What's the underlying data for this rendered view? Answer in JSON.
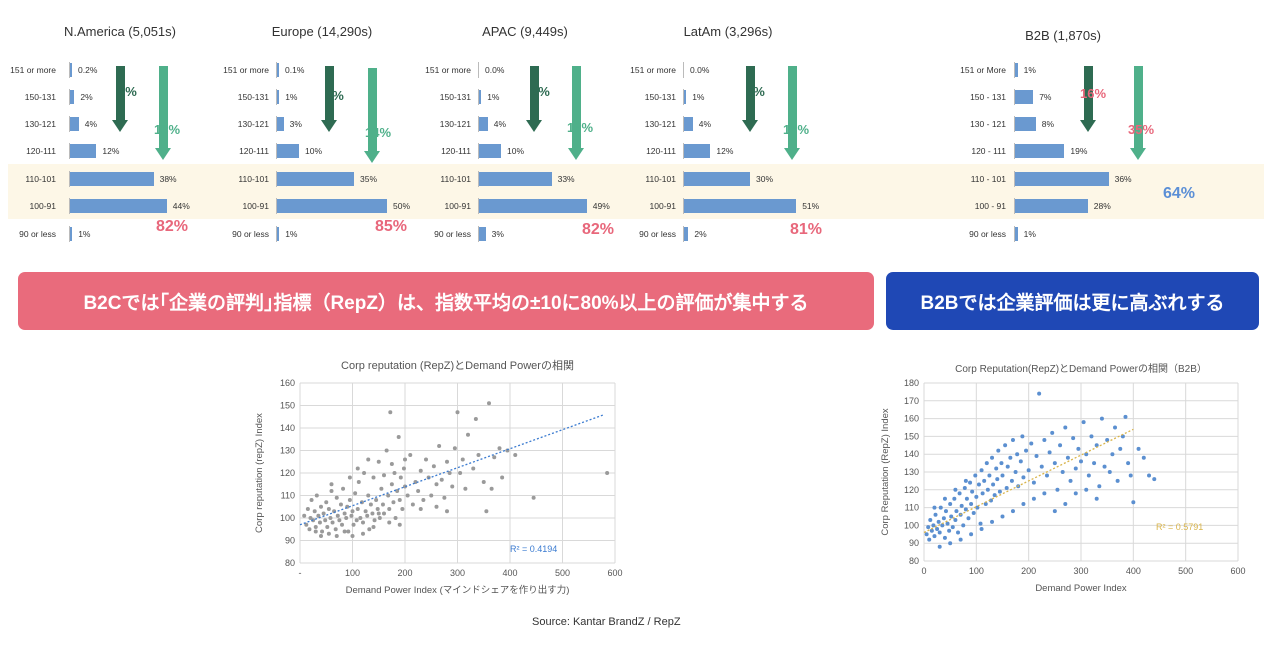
{
  "colors": {
    "bar": "#6a99d0",
    "arrow_dark": "#2e6b52",
    "arrow_light": "#4fb08a",
    "accent_pink": "#e8677b",
    "b2b_pct": "#5b8fd6",
    "banner_b2c": "#e96b7c",
    "banner_b2b": "#1f48b5",
    "scatter_grey": "#9a9a9a",
    "scatter_blue": "#5b8fd0",
    "trend_blue": "#3b7bd0",
    "trend_gold": "#d9b44a"
  },
  "regions": [
    {
      "title": "N.America (5,051s)",
      "categories": [
        "151 or more",
        "150-131",
        "130-121",
        "120-111",
        "110-101",
        "100-91",
        "90 or less"
      ],
      "values": [
        0.2,
        2,
        4,
        12,
        38,
        44,
        1
      ],
      "labels": [
        "0.2%",
        "2%",
        "4%",
        "12%",
        "38%",
        "44%",
        "1%"
      ],
      "dark_arrow_label": "6%",
      "light_arrow_label": "18%",
      "total_label": "82%"
    },
    {
      "title": "Europe (14,290s)",
      "categories": [
        "151 or more",
        "150-131",
        "130-121",
        "120-111",
        "110-101",
        "100-91",
        "90 or less"
      ],
      "values": [
        0.1,
        1,
        3,
        10,
        35,
        50,
        1
      ],
      "labels": [
        "0.1%",
        "1%",
        "3%",
        "10%",
        "35%",
        "50%",
        "1%"
      ],
      "dark_arrow_label": "4%",
      "light_arrow_label": "14%",
      "total_label": "85%"
    },
    {
      "title": "APAC (9,449s)",
      "categories": [
        "151 or more",
        "150-131",
        "130-121",
        "120-111",
        "110-101",
        "100-91",
        "90 or less"
      ],
      "values": [
        0,
        1,
        4,
        10,
        33,
        49,
        3
      ],
      "labels": [
        "0.0%",
        "1%",
        "4%",
        "10%",
        "33%",
        "49%",
        "3%"
      ],
      "dark_arrow_label": "6%",
      "light_arrow_label": "16%",
      "total_label": "82%"
    },
    {
      "title": "LatAm (3,296s)",
      "categories": [
        "151 or more",
        "150-131",
        "130-121",
        "120-111",
        "110-101",
        "100-91",
        "90 or less"
      ],
      "values": [
        0,
        1,
        4,
        12,
        30,
        51,
        2
      ],
      "labels": [
        "0.0%",
        "1%",
        "4%",
        "12%",
        "30%",
        "51%",
        "2%"
      ],
      "dark_arrow_label": "5%",
      "light_arrow_label": "17%",
      "total_label": "81%"
    },
    {
      "title": "B2B (1,870s)",
      "categories": [
        "151 or More",
        "150 - 131",
        "130 - 121",
        "120 - 111",
        "110 - 101",
        "100 - 91",
        "90 or less"
      ],
      "values": [
        1,
        7,
        8,
        19,
        36,
        28,
        1
      ],
      "labels": [
        "1%",
        "7%",
        "8%",
        "19%",
        "36%",
        "28%",
        "1%"
      ],
      "dark_arrow_label": "16%",
      "light_arrow_label": "35%",
      "total_label": "64%"
    }
  ],
  "banners": {
    "b2c": "B2Cでは｢企業の評判｣指標（RepZ）は、指数平均の±10に80%以上の評価が集中する",
    "b2b": "B2Bでは企業評価は更に高ぶれする"
  },
  "chart_data": [
    {
      "type": "scatter",
      "title": "Corp reputation (RepZ)とDemand Powerの相関",
      "xlabel": "Demand Power Index (マインドシェアを作り出す力)",
      "ylabel": "Corp reputation (repZ) Index",
      "xlim": [
        0,
        600
      ],
      "ylim": [
        80,
        160
      ],
      "xticks": [
        "-",
        "100",
        "200",
        "300",
        "400",
        "500",
        "600"
      ],
      "yticks": [
        "80",
        "90",
        "100",
        "110",
        "120",
        "130",
        "140",
        "150",
        "160"
      ],
      "grid": true,
      "r2_label": "R² = 0.4194",
      "trendline": {
        "x": [
          0,
          580
        ],
        "y": [
          97,
          146
        ]
      },
      "points": [
        [
          8,
          101
        ],
        [
          12,
          97
        ],
        [
          15,
          104
        ],
        [
          18,
          95
        ],
        [
          20,
          100
        ],
        [
          22,
          108
        ],
        [
          25,
          99
        ],
        [
          28,
          103
        ],
        [
          30,
          96
        ],
        [
          32,
          110
        ],
        [
          35,
          101
        ],
        [
          38,
          98
        ],
        [
          40,
          105
        ],
        [
          42,
          94
        ],
        [
          45,
          102
        ],
        [
          48,
          99
        ],
        [
          50,
          107
        ],
        [
          52,
          96
        ],
        [
          55,
          104
        ],
        [
          58,
          100
        ],
        [
          60,
          112
        ],
        [
          62,
          98
        ],
        [
          65,
          103
        ],
        [
          68,
          95
        ],
        [
          70,
          109
        ],
        [
          72,
          101
        ],
        [
          75,
          99
        ],
        [
          78,
          106
        ],
        [
          80,
          97
        ],
        [
          82,
          113
        ],
        [
          85,
          102
        ],
        [
          88,
          100
        ],
        [
          90,
          105
        ],
        [
          92,
          94
        ],
        [
          95,
          108
        ],
        [
          98,
          101
        ],
        [
          100,
          103
        ],
        [
          102,
          97
        ],
        [
          105,
          111
        ],
        [
          108,
          99
        ],
        [
          110,
          104
        ],
        [
          112,
          116
        ],
        [
          115,
          100
        ],
        [
          118,
          107
        ],
        [
          120,
          98
        ],
        [
          122,
          120
        ],
        [
          125,
          103
        ],
        [
          128,
          101
        ],
        [
          130,
          110
        ],
        [
          132,
          95
        ],
        [
          135,
          106
        ],
        [
          138,
          102
        ],
        [
          140,
          118
        ],
        [
          142,
          99
        ],
        [
          145,
          108
        ],
        [
          148,
          104
        ],
        [
          150,
          125
        ],
        [
          152,
          100
        ],
        [
          155,
          113
        ],
        [
          158,
          106
        ],
        [
          160,
          102
        ],
        [
          165,
          130
        ],
        [
          168,
          110
        ],
        [
          170,
          104
        ],
        [
          172,
          147
        ],
        [
          175,
          115
        ],
        [
          178,
          107
        ],
        [
          180,
          120
        ],
        [
          182,
          100
        ],
        [
          185,
          112
        ],
        [
          188,
          136
        ],
        [
          190,
          108
        ],
        [
          192,
          118
        ],
        [
          195,
          104
        ],
        [
          198,
          122
        ],
        [
          200,
          114
        ],
        [
          205,
          110
        ],
        [
          210,
          128
        ],
        [
          215,
          106
        ],
        [
          220,
          116
        ],
        [
          225,
          112
        ],
        [
          230,
          121
        ],
        [
          235,
          108
        ],
        [
          240,
          126
        ],
        [
          245,
          118
        ],
        [
          250,
          110
        ],
        [
          255,
          123
        ],
        [
          260,
          115
        ],
        [
          265,
          132
        ],
        [
          270,
          117
        ],
        [
          275,
          109
        ],
        [
          280,
          125
        ],
        [
          285,
          120
        ],
        [
          290,
          114
        ],
        [
          295,
          131
        ],
        [
          300,
          147
        ],
        [
          305,
          120
        ],
        [
          310,
          126
        ],
        [
          315,
          113
        ],
        [
          320,
          137
        ],
        [
          330,
          122
        ],
        [
          335,
          144
        ],
        [
          340,
          128
        ],
        [
          350,
          116
        ],
        [
          355,
          103
        ],
        [
          360,
          151
        ],
        [
          365,
          113
        ],
        [
          370,
          127
        ],
        [
          380,
          131
        ],
        [
          385,
          118
        ],
        [
          395,
          130
        ],
        [
          410,
          128
        ],
        [
          445,
          109
        ],
        [
          585,
          120
        ],
        [
          40,
          92
        ],
        [
          55,
          93
        ],
        [
          70,
          92
        ],
        [
          30,
          94
        ],
        [
          85,
          94
        ],
        [
          100,
          92
        ],
        [
          120,
          93
        ],
        [
          140,
          96
        ],
        [
          60,
          115
        ],
        [
          95,
          118
        ],
        [
          110,
          122
        ],
        [
          130,
          126
        ],
        [
          160,
          119
        ],
        [
          175,
          124
        ],
        [
          200,
          126
        ],
        [
          150,
          102
        ],
        [
          170,
          98
        ],
        [
          190,
          97
        ],
        [
          230,
          104
        ],
        [
          260,
          105
        ],
        [
          280,
          103
        ]
      ]
    },
    {
      "type": "scatter",
      "title": "Corp Reputation(RepZ)とDemand Powerの相関（B2B）",
      "xlabel": "Demand Power Index",
      "ylabel": "Corp Reputation (RepZ) Index",
      "xlim": [
        0,
        600
      ],
      "ylim": [
        80,
        180
      ],
      "xticks": [
        "0",
        "100",
        "200",
        "300",
        "400",
        "500",
        "600"
      ],
      "yticks": [
        "80",
        "90",
        "100",
        "110",
        "120",
        "130",
        "140",
        "150",
        "160",
        "170",
        "180"
      ],
      "grid": true,
      "r2_label": "R² = 0.5791",
      "trendline": {
        "x": [
          0,
          400
        ],
        "y": [
          96,
          154
        ]
      },
      "points": [
        [
          5,
          95
        ],
        [
          8,
          99
        ],
        [
          10,
          92
        ],
        [
          12,
          103
        ],
        [
          15,
          97
        ],
        [
          18,
          100
        ],
        [
          20,
          94
        ],
        [
          22,
          106
        ],
        [
          25,
          98
        ],
        [
          28,
          102
        ],
        [
          30,
          96
        ],
        [
          32,
          110
        ],
        [
          35,
          100
        ],
        [
          38,
          104
        ],
        [
          40,
          93
        ],
        [
          42,
          108
        ],
        [
          45,
          101
        ],
        [
          48,
          97
        ],
        [
          50,
          112
        ],
        [
          52,
          105
        ],
        [
          55,
          99
        ],
        [
          58,
          115
        ],
        [
          60,
          103
        ],
        [
          62,
          108
        ],
        [
          65,
          96
        ],
        [
          68,
          118
        ],
        [
          70,
          106
        ],
        [
          72,
          111
        ],
        [
          75,
          100
        ],
        [
          78,
          121
        ],
        [
          80,
          109
        ],
        [
          82,
          115
        ],
        [
          85,
          104
        ],
        [
          88,
          124
        ],
        [
          90,
          112
        ],
        [
          92,
          119
        ],
        [
          95,
          107
        ],
        [
          98,
          128
        ],
        [
          100,
          116
        ],
        [
          102,
          110
        ],
        [
          105,
          123
        ],
        [
          108,
          101
        ],
        [
          110,
          131
        ],
        [
          112,
          118
        ],
        [
          115,
          125
        ],
        [
          118,
          112
        ],
        [
          120,
          135
        ],
        [
          122,
          120
        ],
        [
          125,
          128
        ],
        [
          128,
          114
        ],
        [
          130,
          138
        ],
        [
          132,
          123
        ],
        [
          135,
          117
        ],
        [
          138,
          132
        ],
        [
          140,
          126
        ],
        [
          142,
          142
        ],
        [
          145,
          119
        ],
        [
          148,
          135
        ],
        [
          150,
          128
        ],
        [
          155,
          145
        ],
        [
          158,
          121
        ],
        [
          160,
          133
        ],
        [
          165,
          138
        ],
        [
          168,
          125
        ],
        [
          170,
          148
        ],
        [
          175,
          130
        ],
        [
          178,
          140
        ],
        [
          180,
          122
        ],
        [
          185,
          136
        ],
        [
          188,
          150
        ],
        [
          190,
          127
        ],
        [
          195,
          142
        ],
        [
          200,
          131
        ],
        [
          205,
          146
        ],
        [
          210,
          124
        ],
        [
          215,
          139
        ],
        [
          220,
          174
        ],
        [
          225,
          133
        ],
        [
          230,
          148
        ],
        [
          235,
          128
        ],
        [
          240,
          141
        ],
        [
          245,
          152
        ],
        [
          250,
          135
        ],
        [
          255,
          120
        ],
        [
          260,
          145
        ],
        [
          265,
          130
        ],
        [
          270,
          155
        ],
        [
          275,
          138
        ],
        [
          280,
          125
        ],
        [
          285,
          149
        ],
        [
          290,
          132
        ],
        [
          295,
          143
        ],
        [
          300,
          136
        ],
        [
          305,
          158
        ],
        [
          310,
          140
        ],
        [
          315,
          128
        ],
        [
          320,
          150
        ],
        [
          325,
          135
        ],
        [
          330,
          145
        ],
        [
          335,
          122
        ],
        [
          340,
          160
        ],
        [
          345,
          133
        ],
        [
          350,
          148
        ],
        [
          355,
          130
        ],
        [
          360,
          140
        ],
        [
          365,
          155
        ],
        [
          370,
          125
        ],
        [
          375,
          143
        ],
        [
          380,
          150
        ],
        [
          385,
          161
        ],
        [
          390,
          135
        ],
        [
          395,
          128
        ],
        [
          400,
          113
        ],
        [
          410,
          143
        ],
        [
          420,
          138
        ],
        [
          430,
          128
        ],
        [
          440,
          126
        ],
        [
          20,
          110
        ],
        [
          40,
          115
        ],
        [
          60,
          120
        ],
        [
          80,
          125
        ],
        [
          30,
          88
        ],
        [
          50,
          90
        ],
        [
          70,
          92
        ],
        [
          90,
          95
        ],
        [
          110,
          98
        ],
        [
          130,
          102
        ],
        [
          150,
          105
        ],
        [
          170,
          108
        ],
        [
          190,
          112
        ],
        [
          210,
          115
        ],
        [
          230,
          118
        ],
        [
          250,
          108
        ],
        [
          270,
          112
        ],
        [
          290,
          118
        ],
        [
          310,
          120
        ],
        [
          330,
          115
        ]
      ]
    }
  ],
  "source": "Source: Kantar BrandZ / RepZ"
}
